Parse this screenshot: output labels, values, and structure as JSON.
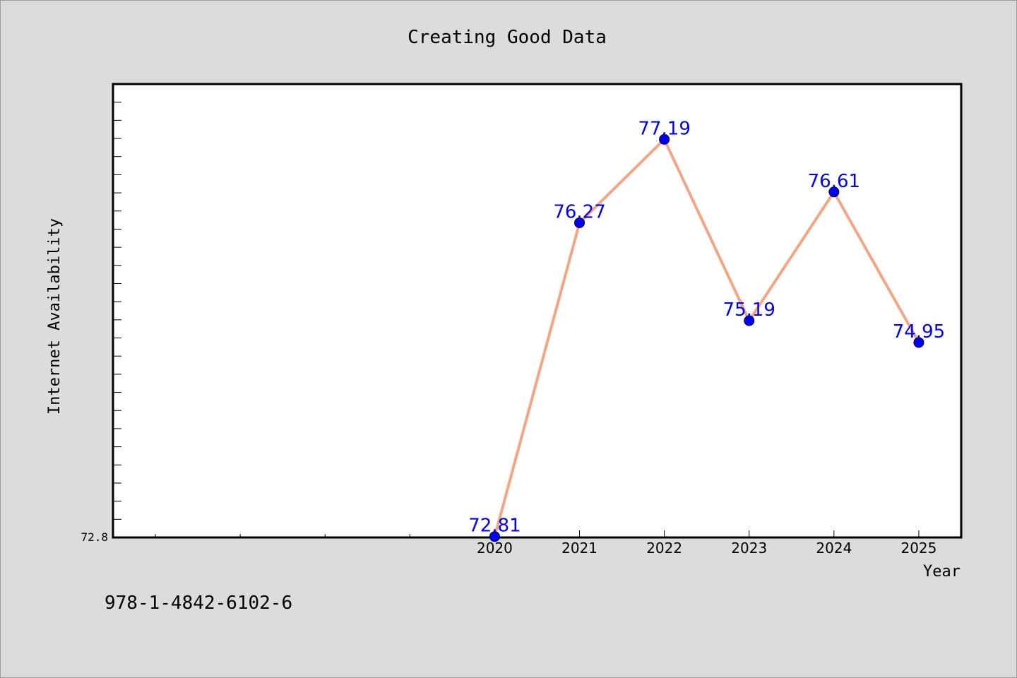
{
  "chart_data": {
    "type": "line",
    "title": "Creating Good Data",
    "xlabel": "Year",
    "ylabel": "Internet Availability",
    "x": [
      2020,
      2021,
      2022,
      2023,
      2024,
      2025
    ],
    "tick_labels": [
      "2020",
      "2021",
      "2022",
      "2023",
      "2024",
      "2025"
    ],
    "xlim": [
      2015.5,
      2025.5
    ],
    "ylim": [
      72.8,
      77.8
    ],
    "yticks_labeled": [
      "72.8"
    ],
    "grid": false,
    "legend": "none",
    "series": [
      {
        "values": [
          72.81,
          76.27,
          77.19,
          75.19,
          76.61,
          74.95
        ],
        "labels": [
          "72.81",
          "76.27",
          "77.19",
          "75.19",
          "76.61",
          "74.95"
        ],
        "line_color": "#f4a582",
        "marker_color": "#0000ff"
      }
    ]
  },
  "footer": {
    "isbn": "978-1-4842-6102-6"
  },
  "colors": {
    "background": "#dcdcdc",
    "plot_background": "#ffffff",
    "data_label": "#0000ff"
  }
}
